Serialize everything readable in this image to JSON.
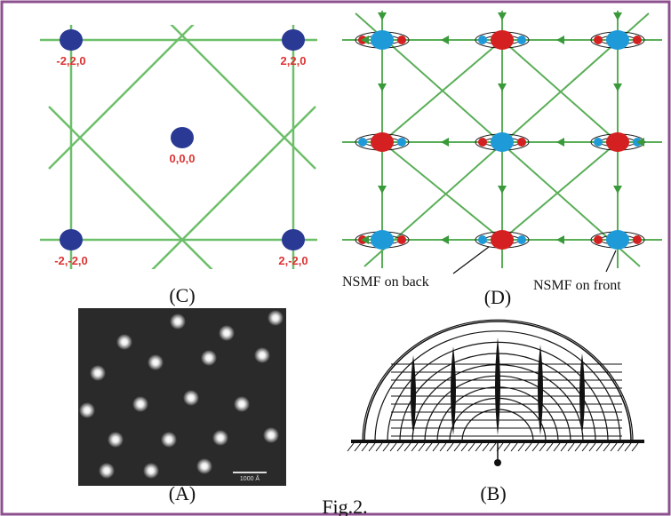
{
  "panels": {
    "c": {
      "label": "(C)",
      "points": [
        "-2,2,0",
        "2,2,0",
        "0,0,0",
        "-2,-2,0",
        "2,-2,0"
      ]
    },
    "d": {
      "label": "(D)",
      "annotations": [
        "NSMF on back",
        "NSMF on front"
      ]
    },
    "a": {
      "label": "(A)",
      "scale_bar": "1000 Å"
    },
    "b": {
      "label": "(B)"
    }
  },
  "caption": "Fig.2."
}
